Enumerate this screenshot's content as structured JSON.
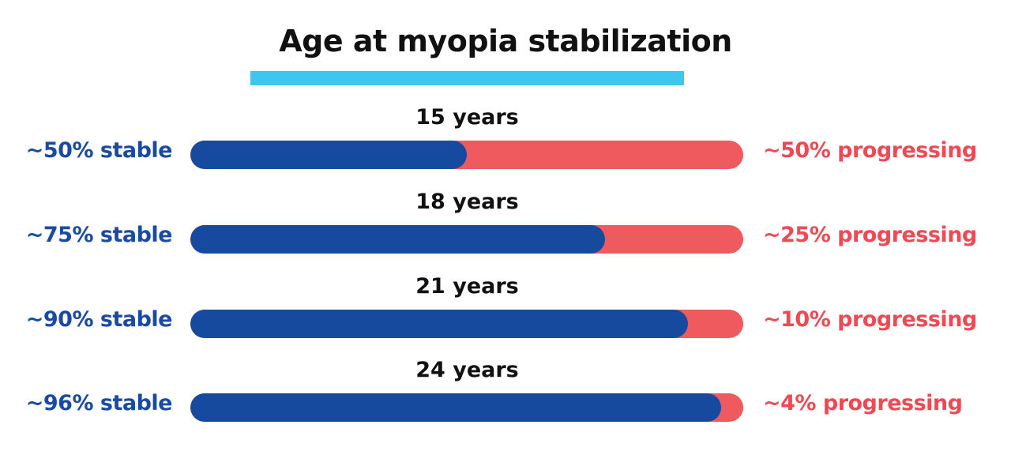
{
  "chart_data": {
    "type": "bar",
    "orientation": "horizontal-stacked",
    "title": "Age at myopia stabilization",
    "categories": [
      "15 years",
      "18 years",
      "21 years",
      "24 years"
    ],
    "series": [
      {
        "name": "stable",
        "values": [
          50,
          75,
          90,
          96
        ],
        "color": "#164a9e"
      },
      {
        "name": "progressing",
        "values": [
          50,
          25,
          10,
          4
        ],
        "color": "#ef5a5e"
      }
    ],
    "rows": [
      {
        "age": "15 years",
        "stable_label": "~50% stable",
        "progressing_label": "~50% progressing",
        "stable": 50,
        "progressing": 50
      },
      {
        "age": "18 years",
        "stable_label": "~75% stable",
        "progressing_label": "~25% progressing",
        "stable": 75,
        "progressing": 25
      },
      {
        "age": "21 years",
        "stable_label": "~90% stable",
        "progressing_label": "~10% progressing",
        "stable": 90,
        "progressing": 10
      },
      {
        "age": "24 years",
        "stable_label": "~96% stable",
        "progressing_label": "~4% progressing",
        "stable": 96,
        "progressing": 4
      }
    ],
    "xlim": [
      0,
      100
    ],
    "grid": false,
    "legend": "none"
  },
  "colors": {
    "stable": "#1a4aa3",
    "progressing": "#ef4a54",
    "accent_underline": "#3ec6ee"
  }
}
